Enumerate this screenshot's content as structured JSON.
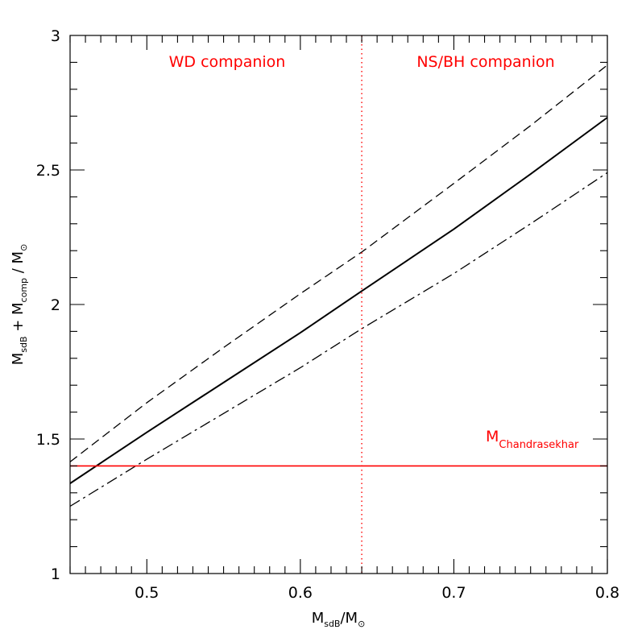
{
  "chart_data": {
    "type": "line",
    "xlabel": {
      "main": "M",
      "sub": "sdB",
      "rest": "/M",
      "sym": "⊙"
    },
    "ylabel": {
      "m1": "M",
      "s1": "sdB",
      "plus": " + ",
      "m2": "M",
      "s2": "comp",
      "rest": " / M",
      "sym": "⊙"
    },
    "xlim": [
      0.45,
      0.8
    ],
    "ylim": [
      1,
      3
    ],
    "x_major_ticks": [
      0.5,
      0.6,
      0.7,
      0.8
    ],
    "x_tick_labels": [
      "0.5",
      "0.6",
      "0.7",
      "0.8"
    ],
    "y_major_ticks": [
      1,
      1.5,
      2,
      2.5,
      3
    ],
    "y_tick_labels": [
      "1",
      "1.5",
      "2",
      "2.5",
      "3"
    ],
    "grid": false,
    "series": [
      {
        "style": "solid",
        "color": "#000000",
        "x": [
          0.45,
          0.5,
          0.55,
          0.6,
          0.64,
          0.7,
          0.75,
          0.8
        ],
        "y": [
          1.335,
          1.525,
          1.71,
          1.895,
          2.05,
          2.28,
          2.485,
          2.695
        ]
      },
      {
        "style": "dashed",
        "color": "#000000",
        "x": [
          0.45,
          0.5,
          0.55,
          0.6,
          0.64,
          0.7,
          0.75,
          0.8
        ],
        "y": [
          1.415,
          1.635,
          1.84,
          2.04,
          2.195,
          2.45,
          2.665,
          2.89
        ]
      },
      {
        "style": "dashdot",
        "color": "#000000",
        "x": [
          0.45,
          0.5,
          0.55,
          0.6,
          0.64,
          0.7,
          0.75,
          0.8
        ],
        "y": [
          1.25,
          1.425,
          1.595,
          1.765,
          1.91,
          2.115,
          2.3,
          2.49
        ]
      }
    ],
    "hline": {
      "y": 1.4,
      "color": "#ff0000",
      "style": "solid"
    },
    "vline": {
      "x": 0.64,
      "color": "#ff0000",
      "style": "dotted"
    },
    "annotations": {
      "wd": "WD companion",
      "nsbh": "NS/BH companion",
      "chandra_main": "M",
      "chandra_sub": "Chandrasekhar"
    }
  }
}
